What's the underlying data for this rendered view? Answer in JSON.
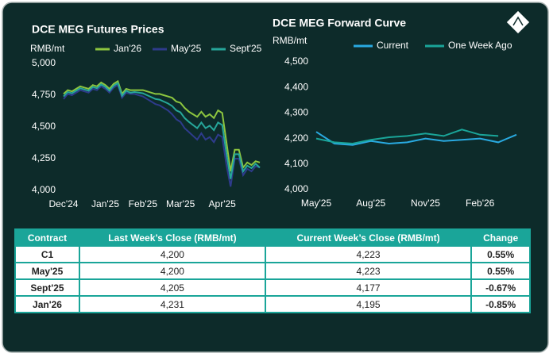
{
  "chart_data": [
    {
      "type": "line",
      "title": "DCE MEG Futures Prices",
      "y_label": "RMB/mt",
      "categories": [
        "Dec'24",
        null,
        null,
        null,
        null,
        null,
        null,
        null,
        null,
        null,
        "Jan'25",
        null,
        null,
        null,
        null,
        null,
        null,
        null,
        null,
        "Feb'25",
        null,
        null,
        null,
        null,
        null,
        null,
        null,
        null,
        "Mar'25",
        null,
        null,
        null,
        null,
        null,
        null,
        null,
        null,
        null,
        "Apr'25",
        null,
        null,
        null,
        null,
        null,
        null,
        null,
        null,
        null
      ],
      "series": [
        {
          "name": "Jan'26",
          "color": "#8dc63f",
          "values": [
            4760,
            4790,
            4780,
            4800,
            4820,
            4810,
            4800,
            4830,
            4820,
            4850,
            4830,
            4800,
            4840,
            4860,
            4760,
            4800,
            4790,
            4790,
            4790,
            4790,
            4780,
            4770,
            4760,
            4760,
            4750,
            4740,
            4730,
            4700,
            4690,
            4650,
            4620,
            4600,
            4580,
            4620,
            4580,
            4600,
            4570,
            4630,
            4610,
            4380,
            4150,
            4320,
            4320,
            4180,
            4220,
            4200,
            4230,
            4220
          ]
        },
        {
          "name": "May'25",
          "color": "#2e3b8c",
          "values": [
            4720,
            4760,
            4750,
            4770,
            4790,
            4780,
            4770,
            4800,
            4790,
            4820,
            4800,
            4770,
            4810,
            4830,
            4730,
            4770,
            4760,
            4760,
            4750,
            4740,
            4720,
            4700,
            4680,
            4670,
            4650,
            4630,
            4600,
            4560,
            4540,
            4490,
            4460,
            4430,
            4400,
            4450,
            4400,
            4420,
            4380,
            4440,
            4420,
            4200,
            4030,
            4250,
            4250,
            4120,
            4170,
            4150,
            4190,
            4180
          ]
        },
        {
          "name": "Sept'25",
          "color": "#26a69a",
          "values": [
            4740,
            4775,
            4765,
            4785,
            4805,
            4795,
            4785,
            4815,
            4805,
            4835,
            4815,
            4785,
            4825,
            4845,
            4745,
            4785,
            4770,
            4775,
            4770,
            4765,
            4750,
            4735,
            4720,
            4715,
            4700,
            4685,
            4665,
            4630,
            4615,
            4570,
            4540,
            4515,
            4490,
            4535,
            4490,
            4510,
            4475,
            4535,
            4515,
            4290,
            4090,
            4285,
            4285,
            4150,
            4195,
            4175,
            4210,
            4180
          ]
        }
      ],
      "ylim": [
        4000,
        5000
      ],
      "yticks": [
        {
          "value": 4000,
          "label": "4,000"
        },
        {
          "value": 4250,
          "label": "4,250"
        },
        {
          "value": 4500,
          "label": "4,500"
        },
        {
          "value": 4750,
          "label": "4,750"
        },
        {
          "value": 5000,
          "label": "5,000"
        }
      ],
      "grid": false,
      "legend": "top"
    },
    {
      "type": "line",
      "title": "DCE MEG Forward Curve",
      "y_label": "RMB/mt",
      "categories": [
        "May'25",
        null,
        null,
        "Aug'25",
        null,
        null,
        "Nov'25",
        null,
        null,
        "Feb'26",
        null,
        null
      ],
      "series": [
        {
          "name": "Current",
          "color": "#29aae1",
          "values": [
            4226,
            4180,
            4175,
            4190,
            4180,
            4185,
            4200,
            4190,
            4195,
            4200,
            4185,
            4215
          ]
        },
        {
          "name": "One Week Ago",
          "color": "#1aa599",
          "values": [
            4200,
            4185,
            4180,
            4195,
            4205,
            4210,
            4220,
            4210,
            4235,
            4215,
            4210,
            null
          ]
        }
      ],
      "ylim": [
        4000,
        4500
      ],
      "yticks": [
        {
          "value": 4000,
          "label": "4,000"
        },
        {
          "value": 4100,
          "label": "4,100"
        },
        {
          "value": 4200,
          "label": "4,200"
        },
        {
          "value": 4300,
          "label": "4,300"
        },
        {
          "value": 4400,
          "label": "4,400"
        },
        {
          "value": 4500,
          "label": "4,500"
        }
      ],
      "grid": false,
      "legend": "top"
    }
  ],
  "table": {
    "header": [
      "Contract",
      "Last Week’s Close (RMB/mt)",
      "Current Week’s Close (RMB/mt)",
      "Change"
    ],
    "rows": [
      [
        "C1",
        "4,200",
        "4,223",
        "0.55%"
      ],
      [
        "May'25",
        "4,200",
        "4,223",
        "0.55%"
      ],
      [
        "Sept'25",
        "4,205",
        "4,177",
        "-0.67%"
      ],
      [
        "Jan'26",
        "4,231",
        "4,195",
        "-0.85%"
      ]
    ]
  }
}
